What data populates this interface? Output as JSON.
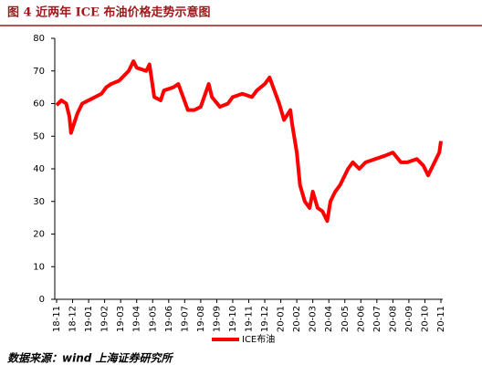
{
  "chart_data": {
    "type": "line",
    "title": "图 4 近两年 ICE 布油价格走势示意图",
    "source": "数据来源：wind 上海证券研究所",
    "x": [
      0,
      0.3,
      0.6,
      0.8,
      0.9,
      1.3,
      1.6,
      2.0,
      2.4,
      2.8,
      3.1,
      3.4,
      3.9,
      4.5,
      4.8,
      5.0,
      5.6,
      5.8,
      6.1,
      6.5,
      6.7,
      7.3,
      7.6,
      7.9,
      8.2,
      8.6,
      9.0,
      9.5,
      9.7,
      10.2,
      10.7,
      11.0,
      11.6,
      12.2,
      12.5,
      13.0,
      13.3,
      13.6,
      13.9,
      14.2,
      14.6,
      14.7,
      15.0,
      15.2,
      15.5,
      15.8,
      16.0,
      16.3,
      16.6,
      16.9,
      17.1,
      17.4,
      17.7,
      18.2,
      18.5,
      18.9,
      19.3,
      19.9,
      20.5,
      21.0,
      21.5,
      21.9,
      22.5,
      22.9,
      23.2,
      23.6,
      23.9,
      24.0
    ],
    "series": [
      {
        "name": "ICE布油",
        "color": "#ff0000",
        "values": [
          59.5,
          61,
          60,
          56,
          51,
          57,
          60,
          61,
          62,
          63,
          65,
          66,
          67,
          70,
          73,
          71,
          70,
          72,
          62,
          61,
          64,
          65,
          66,
          62,
          58,
          58,
          59,
          66,
          62,
          59,
          60,
          62,
          63,
          62,
          64,
          66,
          68,
          64,
          60,
          55,
          58,
          54,
          45,
          35,
          30,
          28,
          33,
          28,
          27,
          24,
          30,
          33,
          35,
          40,
          42,
          40,
          42,
          43,
          44,
          45,
          42,
          42,
          43,
          41,
          38,
          42,
          45,
          48.5
        ]
      }
    ],
    "xlim": [
      0,
      24
    ],
    "xticks": [
      {
        "value": 0,
        "label": "18-11"
      },
      {
        "value": 1,
        "label": "18-12"
      },
      {
        "value": 2,
        "label": "19-01"
      },
      {
        "value": 3,
        "label": "19-02"
      },
      {
        "value": 4,
        "label": "19-03"
      },
      {
        "value": 5,
        "label": "19-04"
      },
      {
        "value": 6,
        "label": "19-05"
      },
      {
        "value": 7,
        "label": "19-06"
      },
      {
        "value": 8,
        "label": "19-07"
      },
      {
        "value": 9,
        "label": "19-08"
      },
      {
        "value": 10,
        "label": "19-09"
      },
      {
        "value": 11,
        "label": "19-10"
      },
      {
        "value": 12,
        "label": "19-11"
      },
      {
        "value": 13,
        "label": "19-12"
      },
      {
        "value": 14,
        "label": "20-01"
      },
      {
        "value": 15,
        "label": "20-02"
      },
      {
        "value": 16,
        "label": "20-03"
      },
      {
        "value": 17,
        "label": "20-04"
      },
      {
        "value": 18,
        "label": "20-05"
      },
      {
        "value": 19,
        "label": "20-06"
      },
      {
        "value": 20,
        "label": "20-07"
      },
      {
        "value": 21,
        "label": "20-08"
      },
      {
        "value": 22,
        "label": "20-09"
      },
      {
        "value": 23,
        "label": "20-10"
      },
      {
        "value": 24,
        "label": "20-11"
      }
    ],
    "ylim": [
      0,
      80
    ],
    "yticks": [
      0,
      10,
      20,
      30,
      40,
      50,
      60,
      70,
      80
    ],
    "legend": "bottom"
  }
}
